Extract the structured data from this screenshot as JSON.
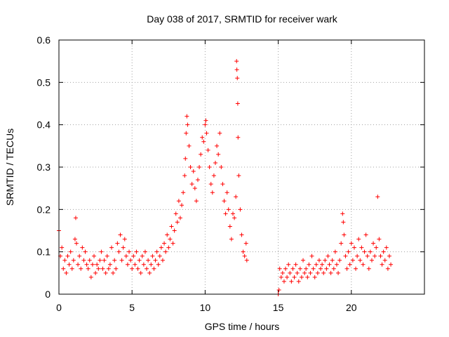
{
  "chart_data": {
    "type": "scatter",
    "title": "Day 038 of 2017, SRMTID for receiver wark",
    "xlabel": "GPS time / hours",
    "ylabel": "SRMTID / TECUs",
    "xlim": [
      0,
      25
    ],
    "ylim": [
      0,
      0.6
    ],
    "xticks": [
      0,
      5,
      10,
      15,
      20
    ],
    "yticks": [
      0,
      0.1,
      0.2,
      0.3,
      0.4,
      0.5,
      0.6
    ],
    "xtick_labels": [
      "0",
      "5",
      "10",
      "15",
      "20"
    ],
    "ytick_labels": [
      "0",
      "0.1",
      "0.2",
      "0.3",
      "0.4",
      "0.5",
      "0.6"
    ],
    "grid": true,
    "marker": "+",
    "color": "#ff0000",
    "series": [
      {
        "name": "SRMTID",
        "points": [
          [
            0.0,
            0.15
          ],
          [
            0.1,
            0.09
          ],
          [
            0.2,
            0.11
          ],
          [
            0.3,
            0.06
          ],
          [
            0.4,
            0.08
          ],
          [
            0.5,
            0.05
          ],
          [
            0.6,
            0.09
          ],
          [
            0.7,
            0.07
          ],
          [
            0.8,
            0.1
          ],
          [
            0.9,
            0.06
          ],
          [
            1.0,
            0.08
          ],
          [
            1.1,
            0.13
          ],
          [
            1.15,
            0.18
          ],
          [
            1.2,
            0.12
          ],
          [
            1.3,
            0.07
          ],
          [
            1.4,
            0.09
          ],
          [
            1.5,
            0.06
          ],
          [
            1.6,
            0.11
          ],
          [
            1.7,
            0.08
          ],
          [
            1.8,
            0.1
          ],
          [
            1.9,
            0.07
          ],
          [
            2.0,
            0.06
          ],
          [
            2.1,
            0.08
          ],
          [
            2.2,
            0.04
          ],
          [
            2.3,
            0.07
          ],
          [
            2.4,
            0.09
          ],
          [
            2.5,
            0.05
          ],
          [
            2.6,
            0.07
          ],
          [
            2.7,
            0.06
          ],
          [
            2.8,
            0.08
          ],
          [
            2.9,
            0.1
          ],
          [
            3.0,
            0.06
          ],
          [
            3.1,
            0.08
          ],
          [
            3.2,
            0.05
          ],
          [
            3.3,
            0.09
          ],
          [
            3.4,
            0.06
          ],
          [
            3.5,
            0.07
          ],
          [
            3.6,
            0.11
          ],
          [
            3.7,
            0.05
          ],
          [
            3.8,
            0.08
          ],
          [
            3.9,
            0.06
          ],
          [
            4.0,
            0.12
          ],
          [
            4.1,
            0.1
          ],
          [
            4.2,
            0.14
          ],
          [
            4.3,
            0.08
          ],
          [
            4.4,
            0.11
          ],
          [
            4.5,
            0.13
          ],
          [
            4.6,
            0.09
          ],
          [
            4.7,
            0.07
          ],
          [
            4.8,
            0.1
          ],
          [
            4.9,
            0.08
          ],
          [
            5.0,
            0.06
          ],
          [
            5.1,
            0.09
          ],
          [
            5.2,
            0.07
          ],
          [
            5.3,
            0.1
          ],
          [
            5.4,
            0.06
          ],
          [
            5.5,
            0.08
          ],
          [
            5.6,
            0.05
          ],
          [
            5.7,
            0.09
          ],
          [
            5.8,
            0.07
          ],
          [
            5.9,
            0.1
          ],
          [
            6.0,
            0.06
          ],
          [
            6.1,
            0.08
          ],
          [
            6.2,
            0.05
          ],
          [
            6.3,
            0.07
          ],
          [
            6.4,
            0.09
          ],
          [
            6.5,
            0.06
          ],
          [
            6.6,
            0.08
          ],
          [
            6.7,
            0.1
          ],
          [
            6.8,
            0.07
          ],
          [
            6.9,
            0.09
          ],
          [
            7.0,
            0.11
          ],
          [
            7.1,
            0.08
          ],
          [
            7.2,
            0.12
          ],
          [
            7.3,
            0.1
          ],
          [
            7.4,
            0.14
          ],
          [
            7.5,
            0.11
          ],
          [
            7.6,
            0.13
          ],
          [
            7.7,
            0.16
          ],
          [
            7.8,
            0.12
          ],
          [
            7.9,
            0.15
          ],
          [
            8.0,
            0.19
          ],
          [
            8.1,
            0.17
          ],
          [
            8.2,
            0.22
          ],
          [
            8.3,
            0.18
          ],
          [
            8.4,
            0.21
          ],
          [
            8.5,
            0.24
          ],
          [
            8.6,
            0.28
          ],
          [
            8.65,
            0.32
          ],
          [
            8.7,
            0.38
          ],
          [
            8.75,
            0.42
          ],
          [
            8.8,
            0.4
          ],
          [
            8.9,
            0.35
          ],
          [
            9.0,
            0.3
          ],
          [
            9.1,
            0.26
          ],
          [
            9.2,
            0.29
          ],
          [
            9.3,
            0.25
          ],
          [
            9.4,
            0.22
          ],
          [
            9.5,
            0.27
          ],
          [
            9.6,
            0.3
          ],
          [
            9.7,
            0.33
          ],
          [
            9.8,
            0.37
          ],
          [
            9.9,
            0.36
          ],
          [
            10.0,
            0.4
          ],
          [
            10.05,
            0.41
          ],
          [
            10.1,
            0.38
          ],
          [
            10.2,
            0.34
          ],
          [
            10.3,
            0.3
          ],
          [
            10.4,
            0.26
          ],
          [
            10.5,
            0.24
          ],
          [
            10.6,
            0.28
          ],
          [
            10.7,
            0.31
          ],
          [
            10.8,
            0.35
          ],
          [
            10.9,
            0.33
          ],
          [
            11.0,
            0.38
          ],
          [
            11.1,
            0.3
          ],
          [
            11.2,
            0.26
          ],
          [
            11.3,
            0.22
          ],
          [
            11.4,
            0.19
          ],
          [
            11.5,
            0.24
          ],
          [
            11.6,
            0.2
          ],
          [
            11.7,
            0.16
          ],
          [
            11.8,
            0.13
          ],
          [
            11.9,
            0.19
          ],
          [
            12.0,
            0.18
          ],
          [
            12.1,
            0.23
          ],
          [
            12.15,
            0.55
          ],
          [
            12.17,
            0.53
          ],
          [
            12.2,
            0.51
          ],
          [
            12.23,
            0.45
          ],
          [
            12.25,
            0.37
          ],
          [
            12.3,
            0.28
          ],
          [
            12.4,
            0.2
          ],
          [
            12.5,
            0.14
          ],
          [
            12.6,
            0.1
          ],
          [
            12.7,
            0.09
          ],
          [
            12.8,
            0.12
          ],
          [
            12.85,
            0.08
          ],
          [
            15.0,
            0.0
          ],
          [
            15.05,
            0.01
          ],
          [
            15.1,
            0.06
          ],
          [
            15.2,
            0.04
          ],
          [
            15.3,
            0.05
          ],
          [
            15.4,
            0.03
          ],
          [
            15.5,
            0.06
          ],
          [
            15.6,
            0.04
          ],
          [
            15.7,
            0.07
          ],
          [
            15.8,
            0.05
          ],
          [
            15.9,
            0.03
          ],
          [
            16.0,
            0.06
          ],
          [
            16.1,
            0.04
          ],
          [
            16.2,
            0.07
          ],
          [
            16.3,
            0.05
          ],
          [
            16.4,
            0.03
          ],
          [
            16.5,
            0.06
          ],
          [
            16.6,
            0.04
          ],
          [
            16.7,
            0.08
          ],
          [
            16.8,
            0.05
          ],
          [
            16.9,
            0.06
          ],
          [
            17.0,
            0.04
          ],
          [
            17.1,
            0.07
          ],
          [
            17.2,
            0.05
          ],
          [
            17.3,
            0.09
          ],
          [
            17.4,
            0.06
          ],
          [
            17.5,
            0.04
          ],
          [
            17.6,
            0.07
          ],
          [
            17.7,
            0.05
          ],
          [
            17.8,
            0.08
          ],
          [
            17.9,
            0.06
          ],
          [
            18.0,
            0.07
          ],
          [
            18.1,
            0.05
          ],
          [
            18.2,
            0.08
          ],
          [
            18.3,
            0.06
          ],
          [
            18.4,
            0.09
          ],
          [
            18.5,
            0.07
          ],
          [
            18.6,
            0.05
          ],
          [
            18.7,
            0.08
          ],
          [
            18.8,
            0.06
          ],
          [
            18.9,
            0.1
          ],
          [
            19.0,
            0.07
          ],
          [
            19.1,
            0.05
          ],
          [
            19.2,
            0.08
          ],
          [
            19.3,
            0.12
          ],
          [
            19.4,
            0.19
          ],
          [
            19.45,
            0.17
          ],
          [
            19.5,
            0.14
          ],
          [
            19.6,
            0.09
          ],
          [
            19.7,
            0.06
          ],
          [
            19.8,
            0.1
          ],
          [
            19.9,
            0.07
          ],
          [
            20.0,
            0.12
          ],
          [
            20.1,
            0.08
          ],
          [
            20.2,
            0.11
          ],
          [
            20.3,
            0.06
          ],
          [
            20.4,
            0.09
          ],
          [
            20.5,
            0.13
          ],
          [
            20.6,
            0.08
          ],
          [
            20.7,
            0.11
          ],
          [
            20.8,
            0.07
          ],
          [
            20.9,
            0.1
          ],
          [
            21.0,
            0.14
          ],
          [
            21.1,
            0.09
          ],
          [
            21.2,
            0.06
          ],
          [
            21.3,
            0.1
          ],
          [
            21.4,
            0.08
          ],
          [
            21.5,
            0.12
          ],
          [
            21.6,
            0.09
          ],
          [
            21.7,
            0.11
          ],
          [
            21.8,
            0.23
          ],
          [
            21.9,
            0.13
          ],
          [
            22.0,
            0.09
          ],
          [
            22.1,
            0.07
          ],
          [
            22.2,
            0.1
          ],
          [
            22.3,
            0.08
          ],
          [
            22.4,
            0.11
          ],
          [
            22.5,
            0.06
          ],
          [
            22.6,
            0.09
          ],
          [
            22.7,
            0.07
          ]
        ]
      }
    ]
  }
}
